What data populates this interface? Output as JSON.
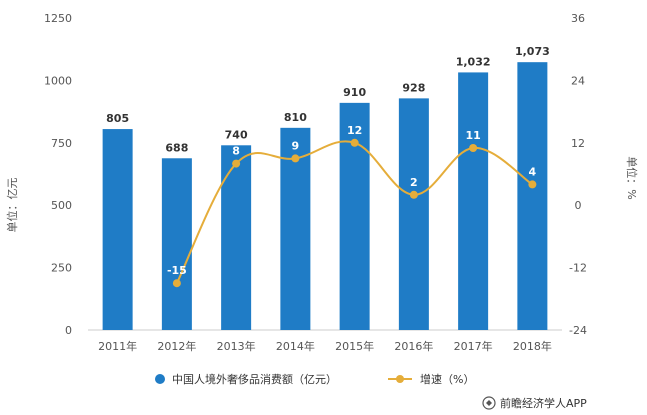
{
  "chart_data": {
    "type": "bar",
    "categories": [
      "2011年",
      "2012年",
      "2013年",
      "2014年",
      "2015年",
      "2016年",
      "2017年",
      "2018年"
    ],
    "series": [
      {
        "name": "中国人境外奢侈品消费额（亿元）",
        "type": "bar",
        "axis": "left",
        "values": [
          805,
          688,
          740,
          810,
          910,
          928,
          1032,
          1073
        ],
        "labels": [
          "805",
          "688",
          "740",
          "810",
          "910",
          "928",
          "1,032",
          "1,073"
        ],
        "color": "#1f7cc6"
      },
      {
        "name": "增速（%）",
        "type": "line",
        "axis": "right",
        "values": [
          null,
          -15,
          8,
          9,
          12,
          2,
          11,
          4
        ],
        "labels": [
          "",
          "-15",
          "8",
          "9",
          "12",
          "2",
          "11",
          "4"
        ],
        "color": "#e5ad3a"
      }
    ],
    "ylabel": "单位：亿元",
    "y2label": "单位：%",
    "ylim": [
      0,
      1250
    ],
    "y2lim": [
      -24,
      36
    ],
    "yticks": [
      "0",
      "250",
      "500",
      "750",
      "1000",
      "1250"
    ],
    "y2ticks": [
      "-24",
      "-12",
      "0",
      "12",
      "24",
      "36"
    ],
    "legend_position": "bottom",
    "grid": false
  },
  "source": "前瞻经济学人APP"
}
